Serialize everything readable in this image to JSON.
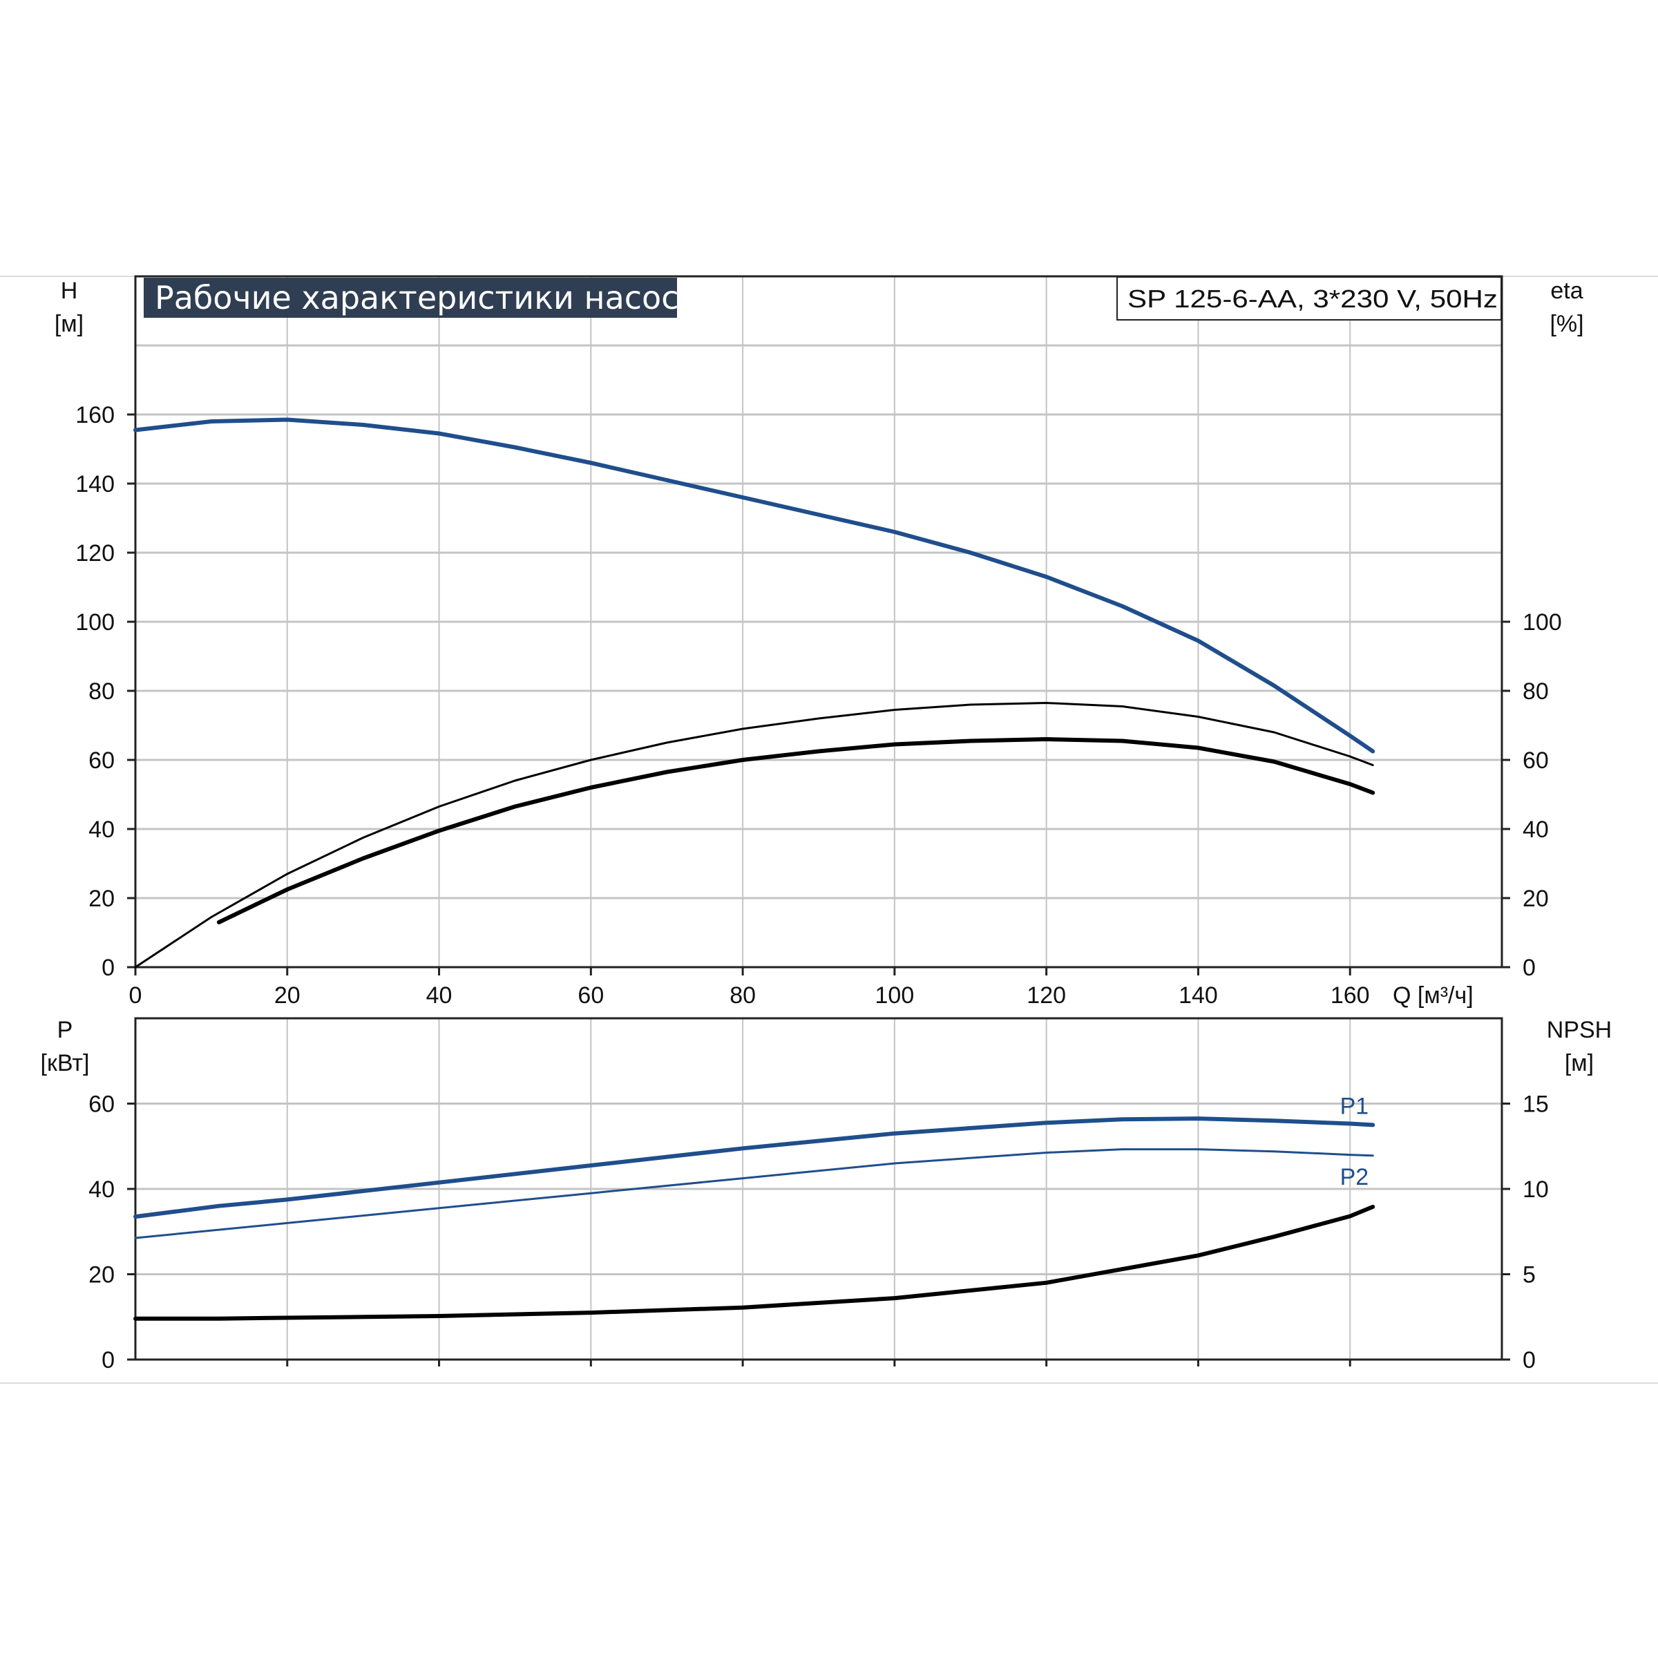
{
  "chart_data": [
    {
      "type": "line",
      "title": "Рабочие характеристики насоса",
      "subtitle": "SP 125-6-AA, 3*230 V, 50Hz",
      "xlabel": "Q [м³/ч]",
      "xlim": [
        0,
        180
      ],
      "x_ticks": [
        0,
        20,
        40,
        60,
        80,
        100,
        120,
        140,
        160
      ],
      "ylabel": "H",
      "ylabel_unit": "[м]",
      "ylim": [
        0,
        200
      ],
      "y_ticks": [
        0,
        20,
        40,
        60,
        80,
        100,
        120,
        140,
        160
      ],
      "y2label": "eta",
      "y2label_unit": "[%]",
      "y2lim": [
        0,
        200
      ],
      "y2_ticks": [
        0,
        20,
        40,
        60,
        80,
        100
      ],
      "grid": true,
      "colors": {
        "head": "#1f4e8c",
        "efficiency": "#000000",
        "title_bg": "#2f3e52"
      },
      "series": [
        {
          "axis": "left",
          "x": [
            0,
            10,
            20,
            30,
            40,
            50,
            60,
            70,
            80,
            90,
            100,
            110,
            120,
            130,
            140,
            150,
            160,
            163
          ],
          "values": [
            155.5,
            158,
            158.5,
            157,
            154.5,
            150.5,
            146,
            141,
            136,
            131,
            126,
            120,
            113,
            104.5,
            94.5,
            81.5,
            67,
            62.5
          ]
        },
        {
          "axis": "right",
          "x": [
            0,
            10,
            20,
            30,
            40,
            50,
            60,
            70,
            80,
            90,
            100,
            110,
            120,
            130,
            140,
            150,
            160,
            163
          ],
          "values": [
            0,
            14.5,
            27,
            37.5,
            46.5,
            54,
            60,
            65,
            69,
            72,
            74.5,
            76,
            76.5,
            75.5,
            72.5,
            68,
            61,
            58.5
          ]
        },
        {
          "axis": "right",
          "x": [
            11,
            20,
            30,
            40,
            50,
            60,
            70,
            80,
            90,
            100,
            110,
            120,
            130,
            140,
            150,
            160,
            163
          ],
          "values": [
            13,
            22.5,
            31.5,
            39.5,
            46.5,
            52,
            56.5,
            60,
            62.5,
            64.5,
            65.5,
            66,
            65.5,
            63.5,
            59.5,
            53,
            50.5
          ]
        }
      ]
    },
    {
      "type": "line",
      "xlabel": "",
      "xlim": [
        0,
        180
      ],
      "x_ticks": [
        20,
        40,
        60,
        80,
        100,
        120,
        140,
        160
      ],
      "ylabel": "P",
      "ylabel_unit": "[кВт]",
      "ylim": [
        0,
        80
      ],
      "y_ticks": [
        0,
        20,
        40,
        60
      ],
      "y2label": "NPSH",
      "y2label_unit": "[м]",
      "y2lim": [
        0,
        20
      ],
      "y2_ticks": [
        0,
        5,
        10,
        15
      ],
      "grid": true,
      "colors": {
        "P1": "#1f4e8c",
        "P2": "#1f4e8c",
        "npsh": "#000000"
      },
      "series": [
        {
          "name": "P1",
          "axis": "left",
          "x": [
            0,
            11,
            20,
            40,
            60,
            80,
            100,
            120,
            130,
            140,
            150,
            160,
            163
          ],
          "values": [
            33.5,
            36,
            37.5,
            41.5,
            45.5,
            49.5,
            53,
            55.5,
            56.3,
            56.5,
            56,
            55.3,
            55
          ]
        },
        {
          "name": "P2",
          "axis": "left",
          "x": [
            0,
            20,
            40,
            60,
            80,
            100,
            120,
            130,
            140,
            150,
            160,
            163
          ],
          "values": [
            28.5,
            32,
            35.5,
            39,
            42.5,
            46,
            48.5,
            49.3,
            49.3,
            48.8,
            48,
            47.8
          ]
        },
        {
          "axis": "right",
          "x": [
            0,
            11,
            20,
            40,
            60,
            80,
            100,
            120,
            130,
            140,
            150,
            160,
            163
          ],
          "values": [
            2.4,
            2.4,
            2.45,
            2.55,
            2.75,
            3.05,
            3.6,
            4.5,
            5.3,
            6.1,
            7.2,
            8.4,
            8.95
          ]
        }
      ]
    }
  ]
}
